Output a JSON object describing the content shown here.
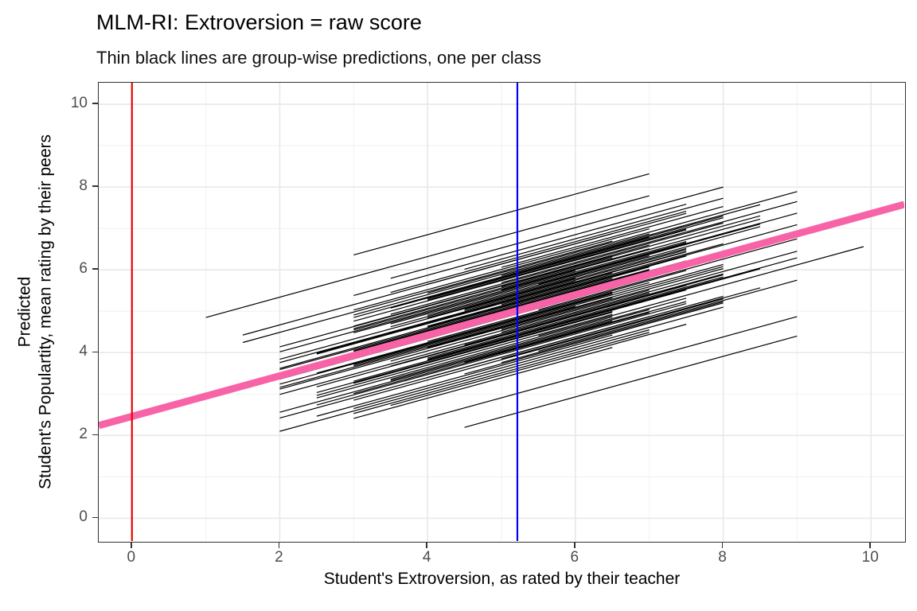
{
  "title": "MLM-RI: Extroversion = raw score",
  "subtitle": "Thin black lines are group-wise predictions, one per class",
  "axes": {
    "x_title": "Student's Extroversion, as rated by their teacher",
    "y_title_line1": "Predicted",
    "y_title_line2": "Student's Populartity, mean rating by their peers"
  },
  "colors": {
    "fixed_line": "#F863A8",
    "group_line": "#000000",
    "vline_zero": "#EE0000",
    "vline_mean": "#0000FF",
    "grid_major": "#E8E8E8",
    "grid_minor": "#F2F2F2",
    "panel_border": "#333333",
    "tick_text": "#4D4D4D"
  },
  "chart_data": {
    "type": "line",
    "title": "MLM-RI: Extroversion = raw score",
    "subtitle": "Thin black lines are group-wise predictions, one per class",
    "xlabel": "Student's Extroversion, as rated by their teacher",
    "ylabel": "Predicted Student's Populartity, mean rating by their peers",
    "x_ticks": [
      0,
      2,
      4,
      6,
      8,
      10
    ],
    "y_ticks": [
      0,
      2,
      4,
      6,
      8,
      10
    ],
    "x_minor": [
      1,
      3,
      5,
      7,
      9
    ],
    "y_minor": [
      1,
      3,
      5,
      7,
      9
    ],
    "xdomain": [
      -0.45,
      10.45
    ],
    "ydomain": [
      -0.55,
      10.52
    ],
    "grid": true,
    "legend": "none",
    "fixed_effect_line": {
      "intercept": 2.46,
      "slope": 0.49,
      "width": 9
    },
    "vlines": [
      {
        "x": 0,
        "role": "zero-extroversion",
        "width": 2.2
      },
      {
        "x": 5.215,
        "role": "mean-extroversion",
        "width": 2.2
      }
    ],
    "group_lines": {
      "slope": 0.49,
      "base_intercept": 2.46,
      "width": 1.2,
      "classes": [
        [
          3,
          7,
          0.12
        ],
        [
          2,
          7,
          -0.45
        ],
        [
          3,
          7.5,
          0.83
        ],
        [
          4,
          8,
          -1.02
        ],
        [
          3.5,
          7.5,
          0.31
        ],
        [
          2.5,
          6.5,
          -0.18
        ],
        [
          4,
          7.5,
          1.23
        ],
        [
          3,
          6.5,
          -0.67
        ],
        [
          5,
          9,
          0.05
        ],
        [
          2,
          7,
          -1.34
        ],
        [
          2,
          6,
          0.58
        ],
        [
          3,
          8,
          -0.25
        ],
        [
          5,
          8.5,
          0.95
        ],
        [
          3.5,
          7.5,
          -0.82
        ],
        [
          4,
          9,
          0.22
        ],
        [
          3.5,
          8,
          1.62
        ],
        [
          2.5,
          7.5,
          -0.51
        ],
        [
          4.5,
          7.5,
          0.38
        ],
        [
          5.5,
          9,
          -1.12
        ],
        [
          3,
          7,
          0.71
        ],
        [
          2,
          6.5,
          -0.05
        ],
        [
          4,
          9,
          -2.0
        ],
        [
          3.5,
          7,
          0.45
        ],
        [
          5,
          8,
          -0.35
        ],
        [
          1.5,
          6.5,
          1.05
        ],
        [
          3,
          7,
          -0.92
        ],
        [
          2,
          7,
          0.18
        ],
        [
          3,
          7.5,
          -0.62
        ],
        [
          4,
          8,
          0.88
        ],
        [
          3.5,
          7.5,
          -1.45
        ],
        [
          2.5,
          6.5,
          0.28
        ],
        [
          4,
          7.5,
          -0.15
        ],
        [
          3,
          7,
          2.43
        ],
        [
          5.5,
          9.9,
          -0.75
        ],
        [
          3.5,
          7.5,
          0.52
        ],
        [
          2.5,
          6.5,
          -1.22
        ],
        [
          4,
          7.5,
          0.08
        ],
        [
          3,
          6.5,
          0.65
        ],
        [
          5,
          9,
          -0.42
        ],
        [
          4.5,
          8,
          1.35
        ],
        [
          2,
          6,
          -0.28
        ],
        [
          3,
          8,
          0.92
        ],
        [
          5,
          8.5,
          -1.06
        ],
        [
          2,
          6.5,
          0.15
        ],
        [
          4,
          9,
          -0.58
        ],
        [
          3.5,
          8,
          0.75
        ],
        [
          2.5,
          7.5,
          -0.95
        ],
        [
          4.5,
          7.5,
          0.35
        ],
        [
          4.5,
          9,
          -2.47
        ],
        [
          3,
          7,
          1.1
        ],
        [
          2,
          6.5,
          -0.32
        ],
        [
          4,
          8.5,
          0.48
        ],
        [
          3.5,
          7,
          -0.85
        ],
        [
          5,
          8,
          0.25
        ],
        [
          4.5,
          8,
          -1.18
        ],
        [
          3,
          7,
          0.62
        ],
        [
          2,
          7,
          -0.08
        ],
        [
          3,
          7.5,
          1.45
        ],
        [
          4,
          8,
          -0.55
        ],
        [
          3.5,
          7.5,
          0.02
        ],
        [
          2.5,
          6.5,
          -0.72
        ],
        [
          4,
          7.5,
          0.85
        ],
        [
          3,
          6.5,
          -0.22
        ],
        [
          1,
          7,
          1.9
        ],
        [
          4.5,
          8,
          -0.48
        ],
        [
          2,
          6,
          0.32
        ],
        [
          3,
          8,
          -1.28
        ],
        [
          5,
          8.5,
          0.68
        ],
        [
          5.5,
          9,
          -0.12
        ],
        [
          3,
          7,
          0.98
        ],
        [
          2,
          6.5,
          -0.88
        ],
        [
          4,
          8.5,
          0.42
        ],
        [
          3.5,
          7,
          -0.38
        ],
        [
          5,
          8,
          1.15
        ],
        [
          2.5,
          6.5,
          -0.65
        ],
        [
          3,
          7,
          0.1
        ],
        [
          2,
          7,
          -1.02
        ],
        [
          3,
          7.5,
          0.55
        ],
        [
          4,
          8,
          -0.3
        ],
        [
          3.5,
          7.5,
          1.28
        ],
        [
          2.5,
          6.5,
          -0.78
        ],
        [
          4,
          7.5,
          0.2
        ],
        [
          3,
          6.5,
          -1.52
        ],
        [
          5,
          9,
          0.78
        ],
        [
          4.5,
          8,
          -0.02
        ],
        [
          2,
          6,
          0.4
        ],
        [
          3,
          8,
          -1.08
        ],
        [
          5,
          8.5,
          0.6
        ],
        [
          2,
          7,
          -0.2
        ],
        [
          4,
          9,
          1.02
        ],
        [
          3.5,
          8,
          -0.5
        ],
        [
          2.5,
          7.5,
          0.3
        ],
        [
          4.5,
          7.5,
          -0.9
        ],
        [
          5.5,
          9,
          0.5
        ],
        [
          3,
          7,
          -1.4
        ],
        [
          2,
          6.5,
          0.7
        ],
        [
          4,
          8.5,
          -0.6
        ],
        [
          3.5,
          7,
          0.9
        ],
        [
          5,
          8,
          -1.15
        ],
        [
          1.5,
          6.5,
          1.23
        ]
      ]
    }
  }
}
